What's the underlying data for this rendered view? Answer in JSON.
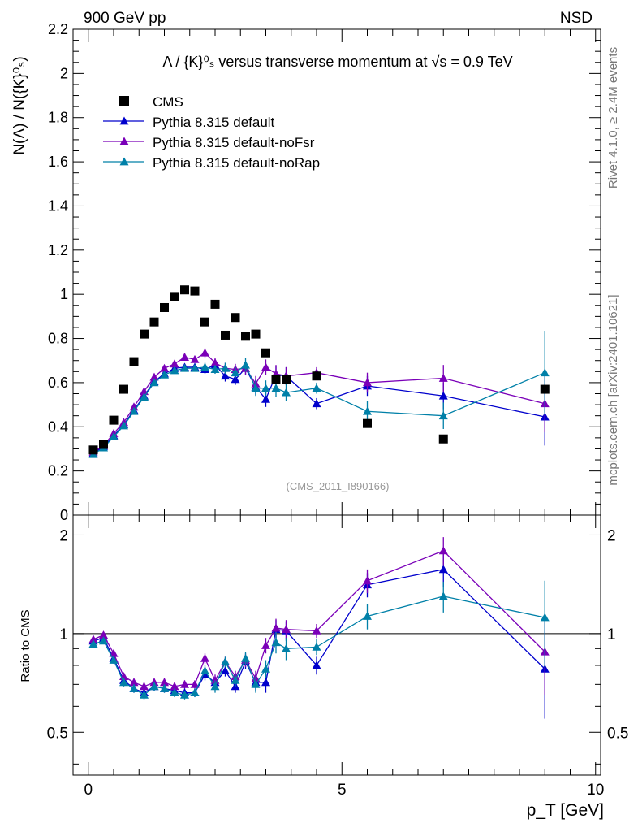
{
  "header": {
    "left": "900 GeV pp",
    "right": "NSD"
  },
  "side": {
    "rivet": "Rivet 4.1.0, ≥ 2.4M events",
    "mcplots": "mcplots.cern.ch [arXiv:2401.10621]"
  },
  "colors": {
    "cms": "#000000",
    "default": "#0000cc",
    "noFsr": "#7a00b8",
    "noRap": "#0080a8"
  },
  "chart_data": {
    "type": "scatter",
    "title": "Λ / {K}⁰ₛ versus transverse momentum at √s = 0.9 TeV",
    "xlabel": "p_T [GeV]",
    "ylabel": "N(Λ) / N({K}⁰ₛ)",
    "ratio_ylabel": "Ratio to CMS",
    "analysis_tag": "(CMS_2011_I890166)",
    "xlim": [
      -0.3,
      10.1
    ],
    "ylim": [
      0,
      2.2
    ],
    "ratio_ylim": [
      0.37,
      2.3
    ],
    "x_ticks": [
      0,
      5,
      10
    ],
    "y_ticks": [
      0,
      0.2,
      0.4,
      0.6,
      0.8,
      1,
      1.2,
      1.4,
      1.6,
      1.8,
      2,
      2.2
    ],
    "ratio_ticks": [
      0.5,
      1,
      2
    ],
    "legend": [
      "CMS",
      "Pythia 8.315 default",
      "Pythia 8.315 default-noFsr",
      "Pythia 8.315 default-noRap"
    ],
    "cms": {
      "x": [
        0.1,
        0.3,
        0.5,
        0.7,
        0.9,
        1.1,
        1.3,
        1.5,
        1.7,
        1.9,
        2.1,
        2.3,
        2.5,
        2.7,
        2.9,
        3.1,
        3.3,
        3.5,
        3.7,
        3.9,
        4.5,
        5.5,
        7.0,
        9.0
      ],
      "y": [
        0.295,
        0.32,
        0.43,
        0.57,
        0.695,
        0.82,
        0.875,
        0.94,
        0.99,
        1.02,
        1.015,
        0.875,
        0.955,
        0.815,
        0.895,
        0.81,
        0.82,
        0.735,
        0.615,
        0.615,
        0.63,
        0.415,
        0.345,
        0.57
      ]
    },
    "series": [
      {
        "name": "Pythia 8.315 default",
        "x": [
          0.1,
          0.3,
          0.5,
          0.7,
          0.9,
          1.1,
          1.3,
          1.5,
          1.7,
          1.9,
          2.1,
          2.3,
          2.5,
          2.7,
          2.9,
          3.1,
          3.3,
          3.5,
          3.7,
          3.9,
          4.5,
          5.5,
          7.0,
          9.0
        ],
        "y": [
          0.28,
          0.31,
          0.36,
          0.41,
          0.475,
          0.54,
          0.605,
          0.64,
          0.665,
          0.67,
          0.67,
          0.66,
          0.68,
          0.63,
          0.615,
          0.665,
          0.58,
          0.525,
          0.635,
          0.63,
          0.505,
          0.585,
          0.54,
          0.445
        ],
        "yerr": [
          0.01,
          0.01,
          0.01,
          0.01,
          0.01,
          0.01,
          0.01,
          0.015,
          0.015,
          0.015,
          0.015,
          0.02,
          0.02,
          0.025,
          0.025,
          0.03,
          0.035,
          0.035,
          0.04,
          0.04,
          0.025,
          0.045,
          0.06,
          0.13
        ],
        "ratio": [
          0.95,
          0.97,
          0.84,
          0.72,
          0.68,
          0.66,
          0.69,
          0.68,
          0.67,
          0.66,
          0.66,
          0.75,
          0.71,
          0.77,
          0.69,
          0.82,
          0.71,
          0.71,
          1.03,
          1.02,
          0.8,
          1.41,
          1.57,
          0.78
        ],
        "ratio_err": [
          0.02,
          0.02,
          0.02,
          0.02,
          0.02,
          0.02,
          0.02,
          0.02,
          0.02,
          0.02,
          0.02,
          0.03,
          0.03,
          0.03,
          0.03,
          0.04,
          0.04,
          0.05,
          0.07,
          0.07,
          0.05,
          0.12,
          0.18,
          0.23
        ]
      },
      {
        "name": "Pythia 8.315 default-noFsr",
        "x": [
          0.1,
          0.3,
          0.5,
          0.7,
          0.9,
          1.1,
          1.3,
          1.5,
          1.7,
          1.9,
          2.1,
          2.3,
          2.5,
          2.7,
          2.9,
          3.1,
          3.3,
          3.5,
          3.7,
          3.9,
          4.5,
          5.5,
          7.0,
          9.0
        ],
        "y": [
          0.285,
          0.315,
          0.37,
          0.42,
          0.49,
          0.56,
          0.625,
          0.665,
          0.685,
          0.715,
          0.705,
          0.735,
          0.69,
          0.665,
          0.66,
          0.665,
          0.595,
          0.67,
          0.64,
          0.63,
          0.645,
          0.6,
          0.62,
          0.505
        ],
        "yerr": [
          0.01,
          0.01,
          0.01,
          0.01,
          0.01,
          0.01,
          0.01,
          0.015,
          0.015,
          0.015,
          0.015,
          0.02,
          0.02,
          0.025,
          0.025,
          0.03,
          0.035,
          0.035,
          0.04,
          0.04,
          0.025,
          0.045,
          0.06,
          0.13
        ],
        "ratio": [
          0.96,
          0.99,
          0.87,
          0.74,
          0.71,
          0.69,
          0.71,
          0.71,
          0.69,
          0.7,
          0.7,
          0.84,
          0.72,
          0.82,
          0.74,
          0.83,
          0.73,
          0.92,
          1.04,
          1.03,
          1.02,
          1.45,
          1.79,
          0.88
        ],
        "ratio_err": [
          0.02,
          0.02,
          0.02,
          0.02,
          0.02,
          0.02,
          0.02,
          0.02,
          0.02,
          0.02,
          0.02,
          0.03,
          0.03,
          0.03,
          0.03,
          0.04,
          0.04,
          0.05,
          0.07,
          0.07,
          0.05,
          0.12,
          0.18,
          0.23
        ]
      },
      {
        "name": "Pythia 8.315 default-noRap",
        "x": [
          0.1,
          0.3,
          0.5,
          0.7,
          0.9,
          1.1,
          1.3,
          1.5,
          1.7,
          1.9,
          2.1,
          2.3,
          2.5,
          2.7,
          2.9,
          3.1,
          3.3,
          3.5,
          3.7,
          3.9,
          4.5,
          5.5,
          7.0,
          9.0
        ],
        "y": [
          0.275,
          0.305,
          0.355,
          0.405,
          0.47,
          0.535,
          0.6,
          0.635,
          0.655,
          0.665,
          0.665,
          0.67,
          0.66,
          0.665,
          0.645,
          0.68,
          0.575,
          0.575,
          0.575,
          0.555,
          0.575,
          0.47,
          0.45,
          0.645
        ],
        "yerr": [
          0.01,
          0.01,
          0.01,
          0.01,
          0.01,
          0.01,
          0.01,
          0.015,
          0.015,
          0.015,
          0.015,
          0.02,
          0.02,
          0.025,
          0.025,
          0.03,
          0.035,
          0.035,
          0.04,
          0.04,
          0.025,
          0.045,
          0.06,
          0.19
        ],
        "ratio": [
          0.93,
          0.95,
          0.83,
          0.71,
          0.68,
          0.65,
          0.69,
          0.68,
          0.66,
          0.65,
          0.66,
          0.77,
          0.69,
          0.82,
          0.72,
          0.84,
          0.7,
          0.78,
          0.94,
          0.9,
          0.91,
          1.13,
          1.3,
          1.12
        ],
        "ratio_err": [
          0.02,
          0.02,
          0.02,
          0.02,
          0.02,
          0.02,
          0.02,
          0.02,
          0.02,
          0.02,
          0.02,
          0.03,
          0.03,
          0.03,
          0.03,
          0.04,
          0.04,
          0.05,
          0.07,
          0.07,
          0.05,
          0.1,
          0.14,
          0.33
        ]
      }
    ]
  }
}
